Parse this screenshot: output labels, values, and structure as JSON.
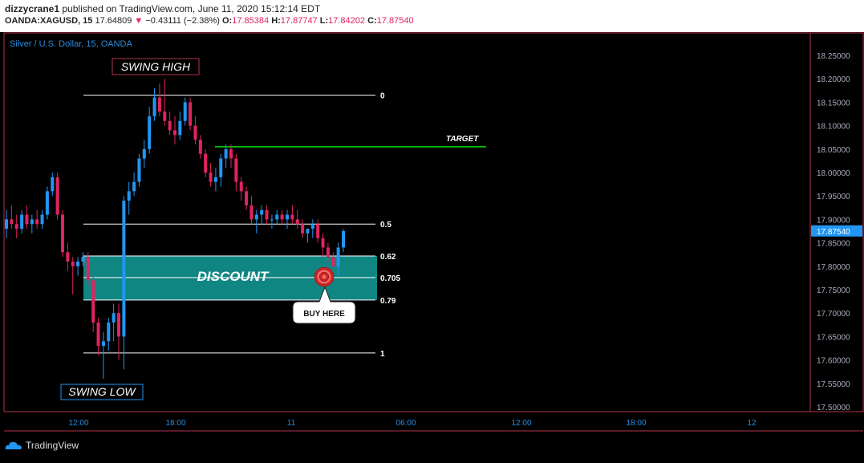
{
  "header": {
    "user": "dizzycrane1",
    "published_text": " published on TradingView.com, June 11, 2020 15:12:14 EDT",
    "symbol": "OANDA:XAGUSD, 15",
    "last": "17.64809",
    "change_arrow": "▼",
    "change": "−0.43111 (−2.38%)",
    "o_label": "O:",
    "o": "17.85384",
    "h_label": "H:",
    "h": "17.87747",
    "l_label": "L:",
    "l": "17.84202",
    "c_label": "C:",
    "c": "17.87540"
  },
  "chart_title": "Silver / U.S. Dollar, 15, OANDA",
  "colors": {
    "up": "#2196f3",
    "down": "#e0245e",
    "target": "#00e000",
    "discount_zone": "#139e9a",
    "frame": "#b2344c"
  },
  "footer": {
    "brand": "TradingView",
    "brand_icon": "tradingview-cloud-icon"
  },
  "chart_data": {
    "type": "candlestick",
    "y_axis": {
      "range": [
        17.48,
        18.3
      ],
      "ticks": [
        "18.25000",
        "18.20000",
        "18.15000",
        "18.10000",
        "18.05000",
        "18.00000",
        "17.95000",
        "17.90000",
        "17.85000",
        "17.80000",
        "17.75000",
        "17.70000",
        "17.65000",
        "17.60000",
        "17.55000",
        "17.50000"
      ]
    },
    "x_axis": {
      "ticks": [
        "12:00",
        "18:00",
        "11",
        "06:00",
        "12:00",
        "18:00",
        "12"
      ]
    },
    "last_price_label": "17.87540",
    "candles": [
      [
        17.88,
        17.92,
        17.86,
        17.9
      ],
      [
        17.9,
        17.93,
        17.88,
        17.89
      ],
      [
        17.89,
        17.91,
        17.86,
        17.88
      ],
      [
        17.88,
        17.92,
        17.87,
        17.91
      ],
      [
        17.91,
        17.93,
        17.88,
        17.89
      ],
      [
        17.89,
        17.91,
        17.87,
        17.9
      ],
      [
        17.9,
        17.92,
        17.88,
        17.89
      ],
      [
        17.89,
        17.92,
        17.88,
        17.91
      ],
      [
        17.91,
        17.97,
        17.9,
        17.96
      ],
      [
        17.96,
        18.0,
        17.95,
        17.99
      ],
      [
        17.99,
        18.0,
        17.9,
        17.91
      ],
      [
        17.91,
        17.92,
        17.82,
        17.83
      ],
      [
        17.83,
        17.85,
        17.79,
        17.81
      ],
      [
        17.81,
        17.82,
        17.74,
        17.8
      ],
      [
        17.8,
        17.82,
        17.78,
        17.81
      ],
      [
        17.81,
        17.83,
        17.8,
        17.82
      ],
      [
        17.82,
        17.83,
        17.76,
        17.77
      ],
      [
        17.77,
        17.78,
        17.66,
        17.68
      ],
      [
        17.68,
        17.69,
        17.61,
        17.63
      ],
      [
        17.63,
        17.66,
        17.56,
        17.64
      ],
      [
        17.64,
        17.69,
        17.62,
        17.68
      ],
      [
        17.68,
        17.72,
        17.64,
        17.7
      ],
      [
        17.7,
        17.72,
        17.6,
        17.65
      ],
      [
        17.65,
        17.95,
        17.58,
        17.94
      ],
      [
        17.94,
        17.98,
        17.91,
        17.96
      ],
      [
        17.96,
        18.0,
        17.95,
        17.98
      ],
      [
        17.98,
        18.04,
        17.97,
        18.03
      ],
      [
        18.03,
        18.07,
        18.01,
        18.05
      ],
      [
        18.05,
        18.14,
        18.04,
        18.12
      ],
      [
        18.12,
        18.18,
        18.11,
        18.16
      ],
      [
        18.16,
        18.19,
        18.12,
        18.13
      ],
      [
        18.13,
        18.2,
        18.1,
        18.11
      ],
      [
        18.11,
        18.13,
        18.08,
        18.09
      ],
      [
        18.09,
        18.12,
        18.06,
        18.08
      ],
      [
        18.08,
        18.13,
        18.07,
        18.11
      ],
      [
        18.11,
        18.16,
        18.1,
        18.15
      ],
      [
        18.15,
        18.16,
        18.09,
        18.1
      ],
      [
        18.1,
        18.12,
        18.06,
        18.07
      ],
      [
        18.07,
        18.08,
        18.03,
        18.04
      ],
      [
        18.04,
        18.05,
        17.99,
        18.0
      ],
      [
        18.0,
        18.02,
        17.97,
        17.98
      ],
      [
        17.98,
        18.01,
        17.96,
        17.99
      ],
      [
        17.99,
        18.04,
        17.97,
        18.03
      ],
      [
        18.03,
        18.06,
        18.01,
        18.05
      ],
      [
        18.05,
        18.06,
        18.01,
        18.03
      ],
      [
        18.03,
        18.04,
        17.96,
        17.98
      ],
      [
        17.98,
        17.99,
        17.94,
        17.96
      ],
      [
        17.96,
        17.97,
        17.92,
        17.93
      ],
      [
        17.93,
        17.95,
        17.89,
        17.9
      ],
      [
        17.9,
        17.92,
        17.87,
        17.91
      ],
      [
        17.91,
        17.93,
        17.89,
        17.92
      ],
      [
        17.92,
        17.93,
        17.89,
        17.9
      ],
      [
        17.9,
        17.91,
        17.88,
        17.9
      ],
      [
        17.9,
        17.92,
        17.89,
        17.91
      ],
      [
        17.91,
        17.92,
        17.89,
        17.9
      ],
      [
        17.9,
        17.92,
        17.88,
        17.91
      ],
      [
        17.91,
        17.93,
        17.89,
        17.9
      ],
      [
        17.9,
        17.92,
        17.88,
        17.89
      ],
      [
        17.89,
        17.9,
        17.86,
        17.87
      ],
      [
        17.87,
        17.88,
        17.85,
        17.88
      ],
      [
        17.88,
        17.9,
        17.86,
        17.89
      ],
      [
        17.89,
        17.9,
        17.85,
        17.86
      ],
      [
        17.86,
        17.87,
        17.82,
        17.84
      ],
      [
        17.84,
        17.85,
        17.81,
        17.82
      ],
      [
        17.82,
        17.83,
        17.79,
        17.8
      ],
      [
        17.8,
        17.85,
        17.78,
        17.84
      ],
      [
        17.84,
        17.88,
        17.83,
        17.875
      ]
    ]
  },
  "fib_levels": [
    {
      "label": "0",
      "value": 18.165
    },
    {
      "label": "0.5",
      "value": 17.89
    },
    {
      "label": "0.62",
      "value": 17.822
    },
    {
      "label": "0.705",
      "value": 17.776
    },
    {
      "label": "0.79",
      "value": 17.728
    },
    {
      "label": "1",
      "value": 17.615
    }
  ],
  "target": {
    "label": "TARGET",
    "value": 18.055
  },
  "annotations": {
    "swing_high": "SWING HIGH",
    "swing_low": "SWING LOW",
    "discount": "DISCOUNT",
    "buy_here": "BUY HERE"
  }
}
